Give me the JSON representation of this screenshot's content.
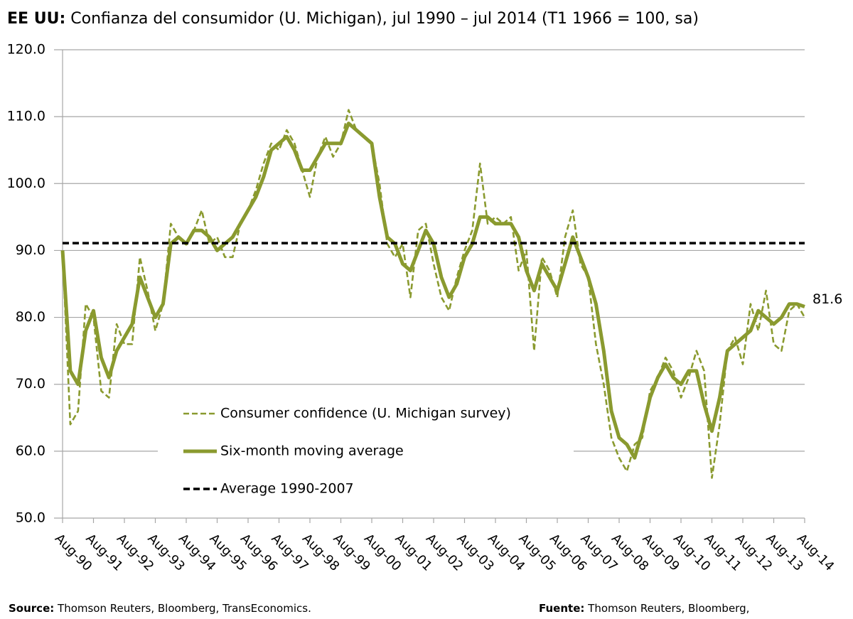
{
  "chart_data": {
    "type": "line",
    "title_bold": "EE UU:",
    "title": "Confianza del consumidor (U. Michigan), jul 1990 – jul 2014 (T1 1966 = 100, sa)",
    "source_bold": "Source:",
    "source": "Thomson Reuters, Bloomberg, TransEconomics.",
    "fuente_bold": "Fuente:",
    "fuente": "Thomson Reuters, Bloomberg,",
    "xlim": [
      1990.58,
      2014.58
    ],
    "ylim": [
      50,
      120
    ],
    "yticks": [
      {
        "value": 50,
        "label": "50.0"
      },
      {
        "value": 60,
        "label": "60.0"
      },
      {
        "value": 70,
        "label": "70.0"
      },
      {
        "value": 80,
        "label": "80.0"
      },
      {
        "value": 90,
        "label": "90.0"
      },
      {
        "value": 100,
        "label": "100.0"
      },
      {
        "value": 110,
        "label": "110.0"
      },
      {
        "value": 120,
        "label": "120.0"
      }
    ],
    "xticks": [
      {
        "value": 1990.58,
        "label": "Aug-90"
      },
      {
        "value": 1991.58,
        "label": "Aug-91"
      },
      {
        "value": 1992.58,
        "label": "Aug-92"
      },
      {
        "value": 1993.58,
        "label": "Aug-93"
      },
      {
        "value": 1994.58,
        "label": "Aug-94"
      },
      {
        "value": 1995.58,
        "label": "Aug-95"
      },
      {
        "value": 1996.58,
        "label": "Aug-96"
      },
      {
        "value": 1997.58,
        "label": "Aug-97"
      },
      {
        "value": 1998.58,
        "label": "Aug-98"
      },
      {
        "value": 1999.58,
        "label": "Aug-99"
      },
      {
        "value": 2000.58,
        "label": "Aug-00"
      },
      {
        "value": 2001.58,
        "label": "Aug-01"
      },
      {
        "value": 2002.58,
        "label": "Aug-02"
      },
      {
        "value": 2003.58,
        "label": "Aug-03"
      },
      {
        "value": 2004.58,
        "label": "Aug-04"
      },
      {
        "value": 2005.58,
        "label": "Aug-05"
      },
      {
        "value": 2006.58,
        "label": "Aug-06"
      },
      {
        "value": 2007.58,
        "label": "Aug-07"
      },
      {
        "value": 2008.58,
        "label": "Aug-08"
      },
      {
        "value": 2009.58,
        "label": "Aug-09"
      },
      {
        "value": 2010.58,
        "label": "Aug-10"
      },
      {
        "value": 2011.58,
        "label": "Aug-11"
      },
      {
        "value": 2012.58,
        "label": "Aug-12"
      },
      {
        "value": 2013.58,
        "label": "Aug-13"
      },
      {
        "value": 2014.58,
        "label": "Aug-14"
      }
    ],
    "grid": true,
    "x": [
      1990.58,
      1990.83,
      1991.08,
      1991.33,
      1991.58,
      1991.83,
      1992.08,
      1992.33,
      1992.58,
      1992.83,
      1993.08,
      1993.33,
      1993.58,
      1993.83,
      1994.08,
      1994.33,
      1994.58,
      1994.83,
      1995.08,
      1995.33,
      1995.58,
      1995.83,
      1996.08,
      1996.33,
      1996.58,
      1996.83,
      1997.08,
      1997.33,
      1997.58,
      1997.83,
      1998.08,
      1998.33,
      1998.58,
      1998.83,
      1999.08,
      1999.33,
      1999.58,
      1999.83,
      2000.08,
      2000.33,
      2000.58,
      2000.83,
      2001.08,
      2001.33,
      2001.58,
      2001.83,
      2002.08,
      2002.33,
      2002.58,
      2002.83,
      2003.08,
      2003.33,
      2003.58,
      2003.83,
      2004.08,
      2004.33,
      2004.58,
      2004.83,
      2005.08,
      2005.33,
      2005.58,
      2005.83,
      2006.08,
      2006.33,
      2006.58,
      2006.83,
      2007.08,
      2007.33,
      2007.58,
      2007.83,
      2008.08,
      2008.33,
      2008.58,
      2008.83,
      2009.08,
      2009.33,
      2009.58,
      2009.83,
      2010.08,
      2010.33,
      2010.58,
      2010.83,
      2011.08,
      2011.33,
      2011.58,
      2011.83,
      2012.08,
      2012.33,
      2012.58,
      2012.83,
      2013.08,
      2013.33,
      2013.58,
      2013.83,
      2014.08,
      2014.33,
      2014.58
    ],
    "series": [
      {
        "name": "Consumer confidence (U. Michigan survey)",
        "color": "#8a9a2f",
        "style": "dashed",
        "values": [
          90,
          64,
          66,
          82,
          80,
          69,
          68,
          79,
          76,
          76,
          89,
          84,
          78,
          82,
          94,
          92,
          91,
          93,
          96,
          91,
          92,
          89,
          89,
          94,
          96,
          99,
          103,
          106,
          105,
          108,
          106,
          102,
          98,
          104,
          107,
          104,
          106,
          111,
          108,
          107,
          106,
          100,
          91,
          89,
          91,
          83,
          93,
          94,
          88,
          83,
          81,
          86,
          90,
          93,
          103,
          94,
          95,
          94,
          95,
          87,
          90,
          75,
          89,
          87,
          83,
          92,
          96,
          88,
          86,
          76,
          70,
          62,
          59,
          57,
          61,
          62,
          69,
          71,
          74,
          72,
          68,
          71,
          75,
          72,
          56,
          64,
          75,
          77,
          73,
          82,
          78,
          84,
          76,
          75,
          81,
          82,
          80
        ]
      },
      {
        "name": "Six-month moving average",
        "color": "#8a9a2f",
        "style": "solid",
        "values": [
          90,
          72,
          70,
          78,
          81,
          74,
          71,
          75,
          77,
          79,
          86,
          83,
          80,
          82,
          91,
          92,
          91,
          93,
          93,
          92,
          90,
          91,
          92,
          94,
          96,
          98,
          101,
          105,
          106,
          107,
          105,
          102,
          102,
          104,
          106,
          106,
          106,
          109,
          108,
          107,
          106,
          98,
          92,
          91,
          88,
          87,
          90,
          93,
          91,
          86,
          83,
          85,
          89,
          91,
          95,
          95,
          94,
          94,
          94,
          92,
          87,
          84,
          88,
          86,
          84,
          88,
          92,
          89,
          86,
          82,
          75,
          66,
          62,
          61,
          59,
          63,
          68,
          71,
          73,
          71,
          70,
          72,
          72,
          67,
          63,
          68,
          75,
          76,
          77,
          78,
          81,
          80,
          79,
          80,
          82,
          82,
          81.6
        ]
      },
      {
        "name": "Average 1990-2007",
        "color": "#000000",
        "style": "avg",
        "x": [
          1990.58,
          2014.58
        ],
        "values": [
          91.1,
          91.1
        ]
      }
    ]
  }
}
